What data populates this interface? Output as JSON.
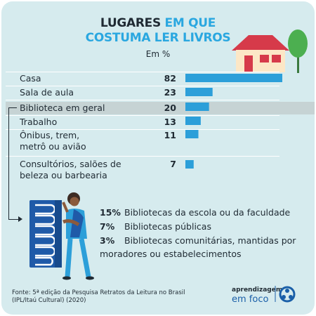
{
  "title_line1": {
    "part1": "LUGARES ",
    "part2": "EM QUE"
  },
  "title_line2": "COSTUMA LER LIVROS",
  "subtitle": "Em %",
  "colors": {
    "bar": "#2c9fd9",
    "title_accent": "#2aa7e0",
    "background": "#d6ebee",
    "highlight": "#c6d3d4"
  },
  "chart_data": {
    "type": "bar",
    "orientation": "horizontal",
    "categories": [
      [
        "Casa"
      ],
      [
        "Sala de aula"
      ],
      [
        "Biblioteca em geral"
      ],
      [
        "Trabalho"
      ],
      [
        "Ônibus, trem,",
        "metrô ou avião"
      ],
      [
        "Consultórios, salões de",
        "beleza ou barbearia"
      ]
    ],
    "values": [
      82,
      23,
      20,
      13,
      11,
      7
    ],
    "value_labels": [
      "82",
      "23",
      "20",
      "13",
      "11",
      "7"
    ],
    "highlighted_category": "Biblioteca em geral",
    "title": "LUGARES EM QUE COSTUMA LER LIVROS",
    "unit": "Em %",
    "xlim": [
      0,
      82
    ]
  },
  "library_breakdown": [
    {
      "pct": "15%",
      "label": "Bibliotecas da escola ou da faculdade"
    },
    {
      "pct": "7%",
      "label": "Bibliotecas públicas"
    },
    {
      "pct": "3%",
      "label": "Bibliotecas comunitárias, mantidas por",
      "label2": "moradores ou estabelecimentos"
    }
  ],
  "source": {
    "line1": "Fonte: 5ª edição da Pesquisa Retratos da Leitura no Brasil",
    "line2": "(IPL/Itaú Cultural) (2020)"
  },
  "logo": {
    "line1": "aprendizagem",
    "line2": "em foco"
  },
  "icons": [
    "house-icon",
    "tree-icon",
    "books-icon",
    "reader-person-icon",
    "logo-icon"
  ]
}
